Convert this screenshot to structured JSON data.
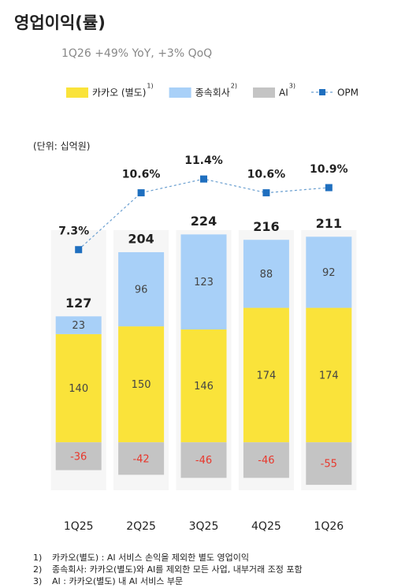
{
  "chart_data": {
    "type": "bar",
    "stacked": true,
    "title": "영업이익(률)",
    "subtitle": "1Q26 +49% YoY, +3% QoQ",
    "unit_label": "(단위: 십억원)",
    "categories": [
      "1Q25",
      "2Q25",
      "3Q25",
      "4Q25",
      "1Q26"
    ],
    "series": [
      {
        "name": "카카오 (별도)",
        "note": "1)",
        "color": "#fae33a",
        "values": [
          140,
          150,
          146,
          174,
          174
        ]
      },
      {
        "name": "종속회사",
        "note": "2)",
        "color": "#a8d0f8",
        "values": [
          23,
          96,
          123,
          88,
          92
        ]
      },
      {
        "name": "AI",
        "note": "3)",
        "color": "#c4c4c4",
        "values": [
          -36,
          -42,
          -46,
          -46,
          -55
        ]
      },
      {
        "name": "OPM",
        "type": "line",
        "axis": "y2",
        "color": "#1f6fbf",
        "values": [
          7.3,
          10.6,
          11.4,
          10.6,
          10.9
        ],
        "value_labels": [
          "7.3%",
          "10.6%",
          "11.4%",
          "10.6%",
          "10.9%"
        ]
      }
    ],
    "totals": [
      127,
      204,
      224,
      216,
      211
    ],
    "ylim": [
      -60,
      300
    ],
    "y2lim": [
      5,
      12
    ],
    "footnotes": [
      {
        "mark": "1)",
        "text": "카카오(별도) : AI 서비스 손익을 제외한 별도 영업이익"
      },
      {
        "mark": "2)",
        "text": "종속회사: 카카오(별도)와 AI를 제외한 모든 사업, 내부거래 조정 포함"
      },
      {
        "mark": "3)",
        "text": "AI : 카카오(별도) 내 AI 서비스 부문"
      }
    ]
  }
}
